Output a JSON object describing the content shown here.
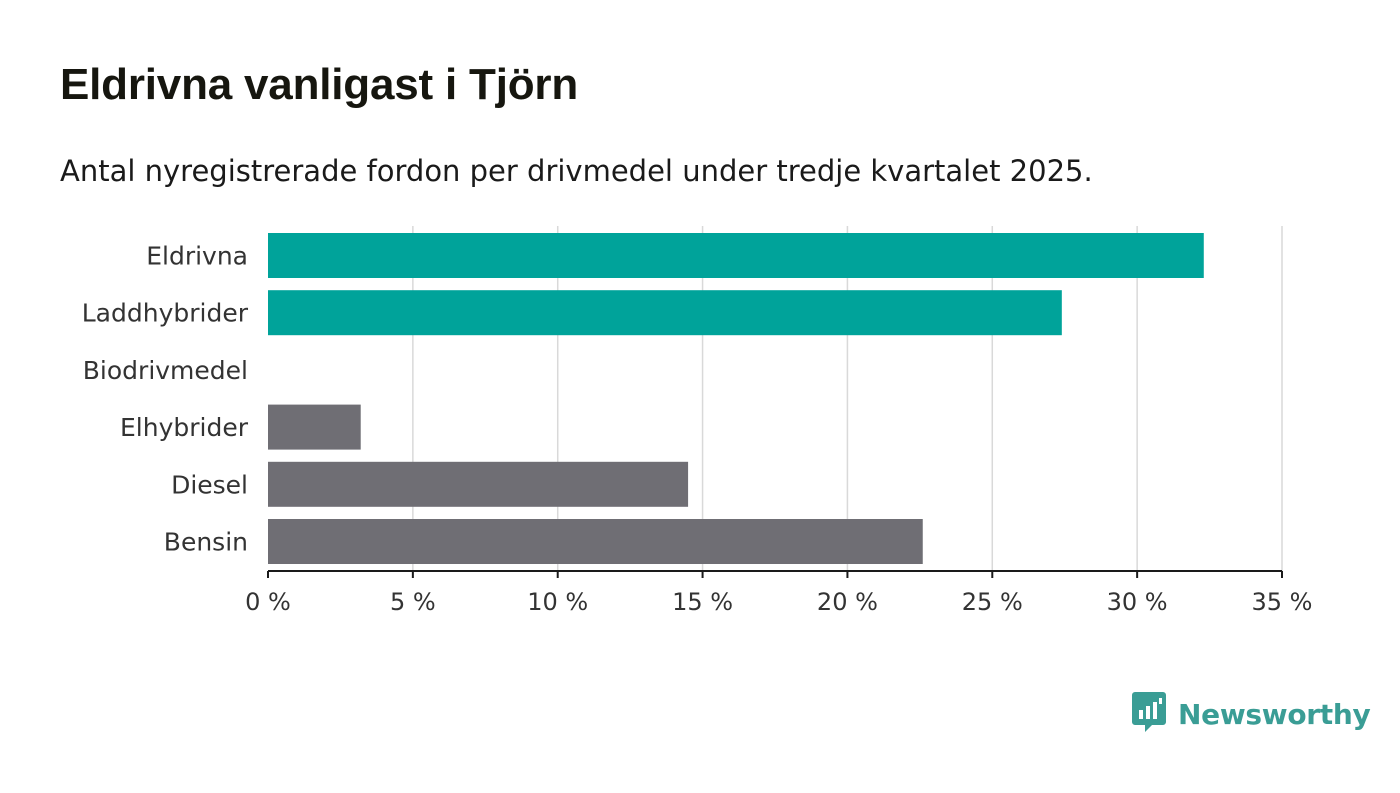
{
  "header": {
    "title": "Eldrivna vanligast i Tjörn",
    "subtitle": "Antal nyregistrerade fordon per drivmedel under tredje kvartalet 2025."
  },
  "brand": {
    "name": "Newsworthy",
    "icon": "newsworthy-logo-icon",
    "color": "#3a9d95"
  },
  "colors": {
    "highlight": "#00a39a",
    "default": "#6f6e74",
    "grid": "#d9d9d9",
    "axis": "#1a1a1a"
  },
  "chart_data": {
    "type": "bar",
    "orientation": "horizontal",
    "title": "Eldrivna vanligast i Tjörn",
    "subtitle": "Antal nyregistrerade fordon per drivmedel under tredje kvartalet 2025.",
    "xlabel": "",
    "ylabel": "",
    "unit": "%",
    "categories": [
      "Eldrivna",
      "Laddhybrider",
      "Biodrivmedel",
      "Elhybrider",
      "Diesel",
      "Bensin"
    ],
    "values": [
      32.3,
      27.4,
      0,
      3.2,
      14.5,
      22.6
    ],
    "highlight": [
      true,
      true,
      true,
      false,
      false,
      false
    ],
    "xlim": [
      0,
      35
    ],
    "ticks": [
      0,
      5,
      10,
      15,
      20,
      25,
      30,
      35
    ],
    "tick_labels": [
      "0 %",
      "5 %",
      "10 %",
      "15 %",
      "20 %",
      "25 %",
      "30 %",
      "35 %"
    ],
    "grid": true
  }
}
